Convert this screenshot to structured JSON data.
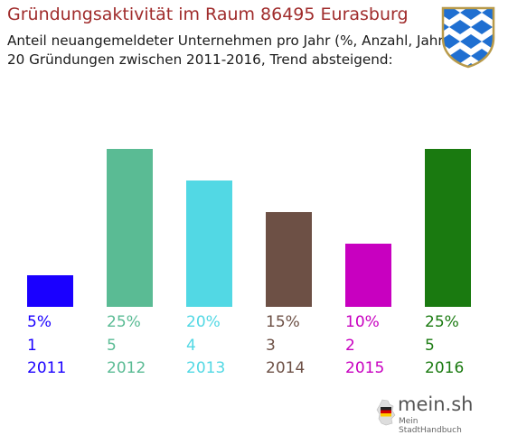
{
  "header": {
    "title": "Gründungsaktivität im Raum 86495 Eurasburg",
    "subtitle_line1": "Anteil neuangemeldeter Unternehmen pro Jahr (%, Anzahl, Jahr)",
    "subtitle_line2": "20 Gründungen zwischen 2011-2016, Trend absteigend:"
  },
  "crest": {
    "icon": "bavaria-crest-icon",
    "colors": {
      "blue": "#1f6fd1",
      "white": "#ffffff",
      "frame": "#b89a4a"
    }
  },
  "chart_data": {
    "type": "bar",
    "categories": [
      "2011",
      "2012",
      "2013",
      "2014",
      "2015",
      "2016"
    ],
    "values": [
      1,
      5,
      4,
      3,
      2,
      5
    ],
    "percent_labels": [
      "5%",
      "25%",
      "20%",
      "15%",
      "10%",
      "25%"
    ],
    "count_labels": [
      "1",
      "5",
      "4",
      "3",
      "2",
      "5"
    ],
    "colors": [
      "#1a00ff",
      "#5abb94",
      "#52d8e4",
      "#6d5045",
      "#c800c0",
      "#1a7a10"
    ],
    "ylim": [
      0,
      5
    ],
    "grid": false,
    "legend": "none"
  },
  "logo": {
    "name": "mein.sh",
    "tagline": "Mein StadtHandbuch",
    "icon": "germany-map-icon"
  }
}
